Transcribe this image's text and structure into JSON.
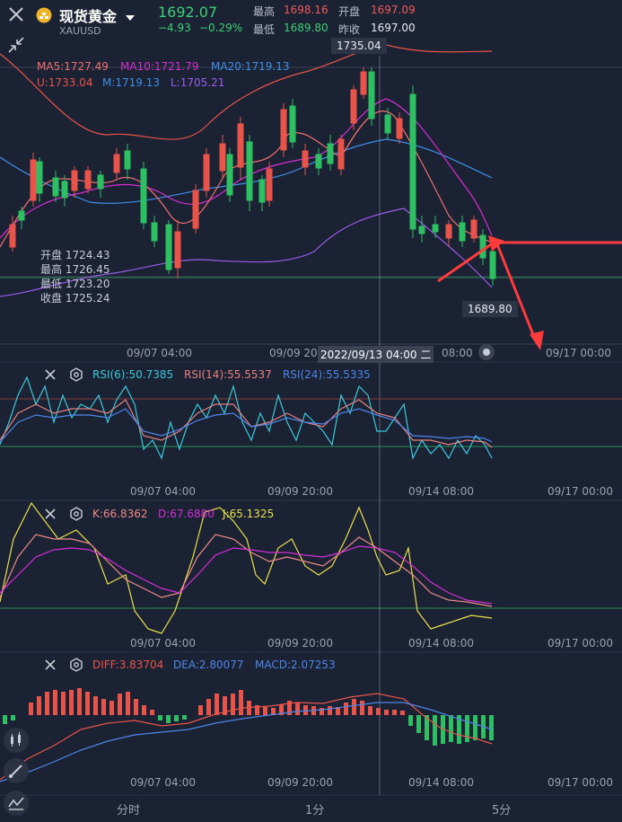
{
  "header": {
    "title": "现货黄金",
    "symbol": "XAUUSD",
    "price": "1692.07",
    "change": "−4.93",
    "change_pct": "−0.29%",
    "high_label": "最高",
    "high_value": "1698.16",
    "open_label": "开盘",
    "open_value": "1697.09",
    "low_label": "最低",
    "low_value": "1689.80",
    "prev_label": "昨收",
    "prev_value": "1697.00"
  },
  "main_chart": {
    "ma5": "MA5:1727.49",
    "ma10": "MA10:1721.79",
    "ma20": "MA20:1719.13",
    "boll_u": "U:1733.04",
    "boll_m": "M:1719.13",
    "boll_l": "L:1705.21",
    "high_marker": "1735.04",
    "low_marker": "1689.80",
    "crosshair_time": "2022/09/13 04:00 二",
    "ohlc": {
      "open_label": "开盘",
      "open_value": "1724.43",
      "high_label": "最高",
      "high_value": "1726.45",
      "low_label": "最低",
      "low_value": "1723.20",
      "close_label": "收盘",
      "close_value": "1725.24"
    },
    "x_ticks": [
      "09/07 04:00",
      "09/09 20",
      "08:00",
      "09/17 00:00"
    ]
  },
  "rsi_panel": {
    "rsi6": "RSI(6):50.7385",
    "rsi14": "RSI(14):55.5537",
    "rsi24": "RSI(24):55.5335",
    "x_ticks": [
      "09/07 04:00",
      "09/09 20:00",
      "09/14 08:00",
      "09/17 00:00"
    ]
  },
  "kdj_panel": {
    "k": "K:66.8362",
    "d": "D:67.6880",
    "j": "J:65.1325",
    "x_ticks": [
      "09/07 04:00",
      "09/09 20:00",
      "09/14 08:00",
      "09/17 00:00"
    ]
  },
  "macd_panel": {
    "diff": "DIFF:3.83704",
    "dea": "DEA:2.80077",
    "macd": "MACD:2.07253",
    "x_ticks": [
      "09/07 04:00",
      "09/09 20:00",
      "09/14 08:00",
      "09/17 00:00"
    ]
  },
  "bottom_tabs": [
    "分时",
    "1分",
    "5分"
  ],
  "colors": {
    "background": "#1a2233",
    "up": "#e8544a",
    "down": "#2fbf63",
    "ma5": "#f07070",
    "ma10": "#d62ed0",
    "ma20": "#3f8fe8",
    "boll_u": "#e8544a",
    "boll_m": "#3f8fe8",
    "boll_l": "#9a5ce8",
    "rsi6": "#39c9d8",
    "rsi14": "#e88080",
    "rsi24": "#4f86e8",
    "k": "#ef8a8a",
    "d": "#d42fd6",
    "j": "#e8e04a",
    "arrow": "#ff3b3b"
  }
}
